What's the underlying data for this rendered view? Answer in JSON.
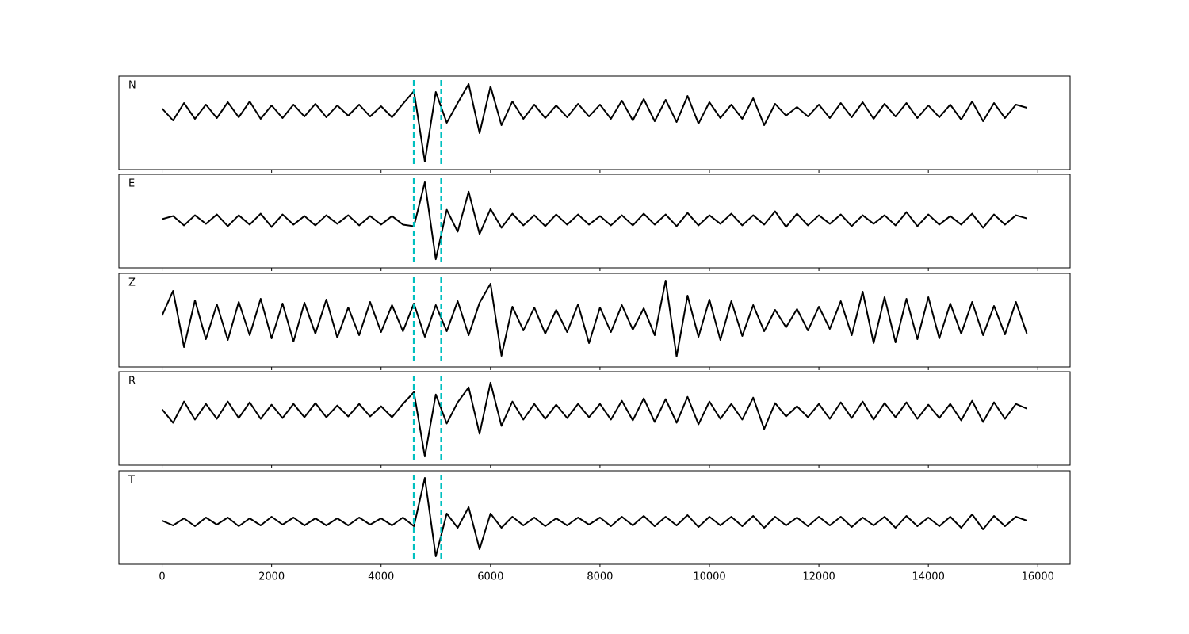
{
  "chart_data": [
    {
      "type": "line",
      "label": "N",
      "color": "#000000",
      "vline_color": "#00bfbf",
      "vlines": [
        4600,
        5100
      ],
      "xlim": [
        -790,
        16590
      ],
      "ylim": [
        -7.4,
        4.4
      ],
      "xticks": [
        0,
        2000,
        4000,
        6000,
        8000,
        10000,
        12000,
        14000,
        16000
      ],
      "x": [
        0,
        200,
        400,
        600,
        800,
        1000,
        1200,
        1400,
        1600,
        1800,
        2000,
        2200,
        2400,
        2600,
        2800,
        3000,
        3200,
        3400,
        3600,
        3800,
        4000,
        4200,
        4400,
        4600,
        4800,
        5000,
        5200,
        5400,
        5600,
        5800,
        6000,
        6200,
        6400,
        6600,
        6800,
        7000,
        7200,
        7400,
        7600,
        7800,
        8000,
        8200,
        8400,
        8600,
        8800,
        9000,
        9200,
        9400,
        9600,
        9800,
        10000,
        10200,
        10400,
        10600,
        10800,
        11000,
        11200,
        11400,
        11600,
        11800,
        12000,
        12200,
        12400,
        12600,
        12800,
        13000,
        13200,
        13400,
        13600,
        13800,
        14000,
        14200,
        14400,
        14600,
        14800,
        15000,
        15200,
        15400,
        15600,
        15800
      ],
      "values": [
        0.3,
        -1.2,
        1.0,
        -1.0,
        0.8,
        -0.9,
        1.1,
        -0.8,
        1.2,
        -1.0,
        0.7,
        -0.9,
        0.8,
        -0.7,
        0.9,
        -0.8,
        0.7,
        -0.6,
        0.8,
        -0.7,
        0.6,
        -0.8,
        0.9,
        2.5,
        -6.4,
        2.4,
        -1.5,
        1.0,
        3.4,
        -2.8,
        3.1,
        -1.8,
        1.2,
        -1.0,
        0.8,
        -0.9,
        0.7,
        -0.8,
        0.9,
        -0.7,
        0.8,
        -1.0,
        1.3,
        -1.2,
        1.5,
        -1.3,
        1.4,
        -1.4,
        1.9,
        -1.6,
        1.1,
        -0.9,
        0.8,
        -1.0,
        1.6,
        -1.8,
        0.9,
        -0.6,
        0.5,
        -0.7,
        0.8,
        -0.9,
        1.0,
        -0.8,
        1.1,
        -1.0,
        0.9,
        -0.7,
        1.0,
        -0.9,
        0.7,
        -0.8,
        0.8,
        -1.1,
        1.2,
        -1.3,
        1.0,
        -0.9,
        0.8,
        0.4
      ]
    },
    {
      "type": "line",
      "label": "E",
      "color": "#000000",
      "vline_color": "#00bfbf",
      "vlines": [
        4600,
        5100
      ],
      "xlim": [
        -790,
        16590
      ],
      "ylim": [
        -6.1,
        5.8
      ],
      "xticks": [
        0,
        2000,
        4000,
        6000,
        8000,
        10000,
        12000,
        14000,
        16000
      ],
      "x": [
        0,
        200,
        400,
        600,
        800,
        1000,
        1200,
        1400,
        1600,
        1800,
        2000,
        2200,
        2400,
        2600,
        2800,
        3000,
        3200,
        3400,
        3600,
        3800,
        4000,
        4200,
        4400,
        4600,
        4800,
        5000,
        5200,
        5400,
        5600,
        5800,
        6000,
        6200,
        6400,
        6600,
        6800,
        7000,
        7200,
        7400,
        7600,
        7800,
        8000,
        8200,
        8400,
        8600,
        8800,
        9000,
        9200,
        9400,
        9600,
        9800,
        10000,
        10200,
        10400,
        10600,
        10800,
        11000,
        11200,
        11400,
        11600,
        11800,
        12000,
        12200,
        12400,
        12600,
        12800,
        13000,
        13200,
        13400,
        13600,
        13800,
        14000,
        14200,
        14400,
        14600,
        14800,
        15000,
        15200,
        15400,
        15600,
        15800
      ],
      "values": [
        0.1,
        0.5,
        -0.7,
        0.6,
        -0.5,
        0.7,
        -0.8,
        0.6,
        -0.6,
        0.8,
        -0.9,
        0.7,
        -0.6,
        0.5,
        -0.7,
        0.6,
        -0.5,
        0.6,
        -0.7,
        0.5,
        -0.6,
        0.5,
        -0.6,
        -0.8,
        4.8,
        -5.0,
        1.3,
        -1.5,
        3.6,
        -1.8,
        1.4,
        -1.0,
        0.8,
        -0.7,
        0.6,
        -0.8,
        0.7,
        -0.6,
        0.7,
        -0.6,
        0.5,
        -0.7,
        0.6,
        -0.7,
        0.8,
        -0.6,
        0.7,
        -0.8,
        0.9,
        -0.7,
        0.6,
        -0.5,
        0.8,
        -0.7,
        0.6,
        -0.6,
        1.1,
        -0.9,
        0.8,
        -0.7,
        0.6,
        -0.5,
        0.7,
        -0.8,
        0.6,
        -0.5,
        0.6,
        -0.7,
        1.0,
        -0.8,
        0.7,
        -0.6,
        0.5,
        -0.6,
        0.8,
        -1.0,
        0.7,
        -0.6,
        0.6,
        0.2
      ]
    },
    {
      "type": "line",
      "label": "Z",
      "color": "#000000",
      "vline_color": "#00bfbf",
      "vlines": [
        4600,
        5100
      ],
      "xlim": [
        -790,
        16590
      ],
      "ylim": [
        -6.0,
        5.8
      ],
      "xticks": [
        0,
        2000,
        4000,
        6000,
        8000,
        10000,
        12000,
        14000,
        16000
      ],
      "x": [
        0,
        200,
        400,
        600,
        800,
        1000,
        1200,
        1400,
        1600,
        1800,
        2000,
        2200,
        2400,
        2600,
        2800,
        3000,
        3200,
        3400,
        3600,
        3800,
        4000,
        4200,
        4400,
        4600,
        4800,
        5000,
        5200,
        5400,
        5600,
        5800,
        6000,
        6200,
        6400,
        6600,
        6800,
        7000,
        7200,
        7400,
        7600,
        7800,
        8000,
        8200,
        8400,
        8600,
        8800,
        9000,
        9200,
        9400,
        9600,
        9800,
        10000,
        10200,
        10400,
        10600,
        10800,
        11000,
        11200,
        11400,
        11600,
        11800,
        12000,
        12200,
        12400,
        12600,
        12800,
        13000,
        13200,
        13400,
        13600,
        13800,
        14000,
        14200,
        14400,
        14600,
        14800,
        15000,
        15200,
        15400,
        15600,
        15800
      ],
      "values": [
        0.5,
        3.6,
        -3.5,
        2.4,
        -2.5,
        1.9,
        -2.6,
        2.2,
        -2.0,
        2.6,
        -2.4,
        2.0,
        -2.8,
        2.1,
        -1.8,
        2.5,
        -2.3,
        1.5,
        -2.0,
        2.2,
        -1.6,
        1.8,
        -1.5,
        2.0,
        -2.2,
        1.8,
        -1.5,
        2.3,
        -2.0,
        2.1,
        4.5,
        -4.6,
        1.6,
        -1.4,
        1.5,
        -1.8,
        1.2,
        -1.6,
        1.9,
        -3.0,
        1.5,
        -1.6,
        1.8,
        -1.3,
        1.4,
        -2.0,
        4.9,
        -4.7,
        3.0,
        -2.2,
        2.5,
        -2.6,
        2.3,
        -2.1,
        1.8,
        -1.5,
        1.2,
        -1.0,
        1.3,
        -1.4,
        1.6,
        -1.2,
        2.3,
        -2.0,
        3.5,
        -3.0,
        2.8,
        -2.9,
        2.6,
        -2.5,
        2.8,
        -2.4,
        2.0,
        -1.8,
        2.2,
        -2.0,
        1.7,
        -1.9,
        2.2,
        -1.8
      ]
    },
    {
      "type": "line",
      "label": "R",
      "color": "#000000",
      "vline_color": "#00bfbf",
      "vlines": [
        4600,
        5100
      ],
      "xlim": [
        -790,
        16590
      ],
      "ylim": [
        -6.9,
        5.0
      ],
      "xticks": [
        0,
        2000,
        4000,
        6000,
        8000,
        10000,
        12000,
        14000,
        16000
      ],
      "x": [
        0,
        200,
        400,
        600,
        800,
        1000,
        1200,
        1400,
        1600,
        1800,
        2000,
        2200,
        2400,
        2600,
        2800,
        3000,
        3200,
        3400,
        3600,
        3800,
        4000,
        4200,
        4400,
        4600,
        4800,
        5000,
        5200,
        5400,
        5600,
        5800,
        6000,
        6200,
        6400,
        6600,
        6800,
        7000,
        7200,
        7400,
        7600,
        7800,
        8000,
        8200,
        8400,
        8600,
        8800,
        9000,
        9200,
        9400,
        9600,
        9800,
        10000,
        10200,
        10400,
        10600,
        10800,
        11000,
        11200,
        11400,
        11600,
        11800,
        12000,
        12200,
        12400,
        12600,
        12800,
        13000,
        13200,
        13400,
        13600,
        13800,
        14000,
        14200,
        14400,
        14600,
        14800,
        15000,
        15200,
        15400,
        15600,
        15800
      ],
      "values": [
        0.2,
        -1.5,
        1.2,
        -1.1,
        0.9,
        -1.0,
        1.2,
        -0.9,
        1.1,
        -1.0,
        0.8,
        -0.9,
        0.9,
        -0.8,
        1.0,
        -0.8,
        0.7,
        -0.7,
        0.9,
        -0.7,
        0.6,
        -0.8,
        0.9,
        2.4,
        -5.8,
        2.1,
        -1.6,
        1.1,
        3.0,
        -2.9,
        3.6,
        -1.9,
        1.2,
        -1.1,
        0.9,
        -1.0,
        0.8,
        -0.9,
        0.9,
        -0.8,
        0.9,
        -1.1,
        1.3,
        -1.2,
        1.6,
        -1.4,
        1.5,
        -1.5,
        1.8,
        -1.7,
        1.2,
        -1.0,
        0.9,
        -1.1,
        1.7,
        -2.3,
        1.0,
        -0.7,
        0.6,
        -0.8,
        0.9,
        -1.0,
        1.1,
        -0.9,
        1.2,
        -1.1,
        1.0,
        -0.8,
        1.1,
        -1.0,
        0.8,
        -0.9,
        0.9,
        -1.2,
        1.3,
        -1.4,
        1.1,
        -1.0,
        0.9,
        0.3
      ]
    },
    {
      "type": "line",
      "label": "T",
      "color": "#000000",
      "vline_color": "#00bfbf",
      "vlines": [
        4600,
        5100
      ],
      "xlim": [
        -790,
        16590
      ],
      "ylim": [
        -5.4,
        6.4
      ],
      "xticks": [
        0,
        2000,
        4000,
        6000,
        8000,
        10000,
        12000,
        14000,
        16000
      ],
      "x": [
        0,
        200,
        400,
        600,
        800,
        1000,
        1200,
        1400,
        1600,
        1800,
        2000,
        2200,
        2400,
        2600,
        2800,
        3000,
        3200,
        3400,
        3600,
        3800,
        4000,
        4200,
        4400,
        4600,
        4800,
        5000,
        5200,
        5400,
        5600,
        5800,
        6000,
        6200,
        6400,
        6600,
        6800,
        7000,
        7200,
        7400,
        7600,
        7800,
        8000,
        8200,
        8400,
        8600,
        8800,
        9000,
        9200,
        9400,
        9600,
        9800,
        10000,
        10200,
        10400,
        10600,
        10800,
        11000,
        11200,
        11400,
        11600,
        11800,
        12000,
        12200,
        12400,
        12600,
        12800,
        13000,
        13200,
        13400,
        13600,
        13800,
        14000,
        14200,
        14400,
        14600,
        14800,
        15000,
        15200,
        15400,
        15600,
        15800
      ],
      "values": [
        0.1,
        -0.5,
        0.4,
        -0.6,
        0.5,
        -0.4,
        0.5,
        -0.6,
        0.4,
        -0.5,
        0.6,
        -0.4,
        0.5,
        -0.5,
        0.4,
        -0.5,
        0.4,
        -0.5,
        0.5,
        -0.4,
        0.4,
        -0.5,
        0.5,
        -0.6,
        5.5,
        -4.4,
        1.0,
        -0.8,
        1.8,
        -3.5,
        1.0,
        -0.8,
        0.6,
        -0.5,
        0.5,
        -0.6,
        0.4,
        -0.5,
        0.5,
        -0.4,
        0.5,
        -0.6,
        0.6,
        -0.5,
        0.7,
        -0.6,
        0.6,
        -0.5,
        0.8,
        -0.7,
        0.6,
        -0.5,
        0.6,
        -0.6,
        0.7,
        -0.8,
        0.6,
        -0.5,
        0.5,
        -0.6,
        0.6,
        -0.5,
        0.6,
        -0.7,
        0.5,
        -0.5,
        0.6,
        -0.8,
        0.7,
        -0.6,
        0.5,
        -0.6,
        0.6,
        -0.8,
        0.9,
        -1.0,
        0.7,
        -0.6,
        0.6,
        0.1
      ]
    }
  ]
}
